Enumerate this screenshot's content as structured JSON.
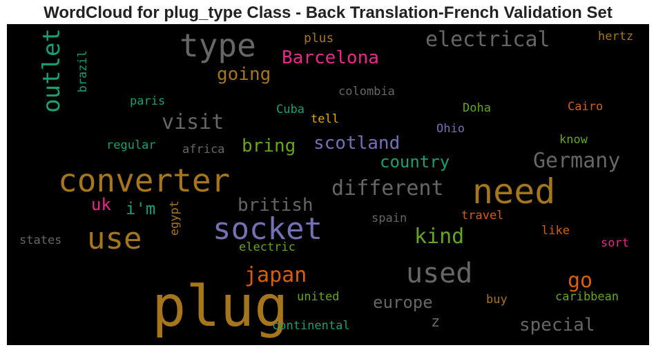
{
  "title": "WordCloud for plug_type Class - Back Translation-French Validation Set",
  "words": {
    "plug": "plug",
    "type": "type",
    "converter": "converter",
    "need": "need",
    "socket": "socket",
    "use": "use",
    "used": "used",
    "outlet": "outlet",
    "electrical": "electrical",
    "barcelona": "Barcelona",
    "going": "going",
    "visit": "visit",
    "bring": "bring",
    "scotland": "scotland",
    "country": "country",
    "germany": "Germany",
    "different": "different",
    "british": "british",
    "kind": "kind",
    "japan": "japan",
    "go": "go",
    "europe": "europe",
    "special": "special",
    "uk": "uk",
    "im": "i'm",
    "plus": "plus",
    "hertz": "hertz",
    "brazil": "brazil",
    "colombia": "colombia",
    "paris": "paris",
    "cuba": "Cuba",
    "doha": "Doha",
    "cairo": "Cairo",
    "tell": "tell",
    "ohio": "Ohio",
    "regular": "regular",
    "africa": "africa",
    "know": "know",
    "egypt": "egypt",
    "spain": "spain",
    "travel": "travel",
    "states": "states",
    "electric": "electric",
    "like": "like",
    "sort": "sort",
    "united": "united",
    "buy": "buy",
    "caribbean": "caribbean",
    "continental": "continental",
    "z": "z"
  },
  "colors": {
    "background": "#000000",
    "gold_brown": "#a6761d",
    "gray": "#666666",
    "teal": "#1b9e77",
    "pink": "#e7298a",
    "purple": "#7570b3",
    "green": "#66a61e",
    "orange": "#d95f02",
    "yellow": "#e6ab02"
  }
}
